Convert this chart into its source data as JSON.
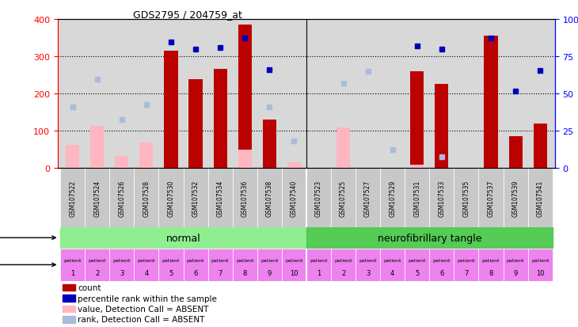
{
  "title": "GDS2795 / 204759_at",
  "samples": [
    "GSM107522",
    "GSM107524",
    "GSM107526",
    "GSM107528",
    "GSM107530",
    "GSM107532",
    "GSM107534",
    "GSM107536",
    "GSM107538",
    "GSM107540",
    "GSM107523",
    "GSM107525",
    "GSM107527",
    "GSM107529",
    "GSM107531",
    "GSM107533",
    "GSM107535",
    "GSM107537",
    "GSM107539",
    "GSM107541"
  ],
  "count_values": [
    null,
    null,
    null,
    null,
    315,
    238,
    265,
    385,
    130,
    null,
    null,
    null,
    null,
    null,
    260,
    225,
    null,
    355,
    85,
    120
  ],
  "rank_values": [
    null,
    null,
    null,
    null,
    338,
    320,
    323,
    348,
    263,
    null,
    null,
    null,
    null,
    null,
    328,
    318,
    null,
    348,
    207,
    262
  ],
  "absent_value_values": [
    62,
    112,
    32,
    68,
    null,
    null,
    null,
    50,
    null,
    15,
    null,
    108,
    null,
    null,
    10,
    null,
    null,
    null,
    null,
    null
  ],
  "absent_rank_values": [
    165,
    238,
    130,
    170,
    null,
    null,
    null,
    null,
    163,
    73,
    null,
    228,
    260,
    50,
    null,
    30,
    null,
    null,
    null,
    null
  ],
  "ylim_left": [
    0,
    400
  ],
  "ylim_right": [
    0,
    100
  ],
  "yticks_left": [
    0,
    100,
    200,
    300,
    400
  ],
  "yticks_right": [
    0,
    25,
    50,
    75,
    100
  ],
  "yticklabels_right": [
    "0",
    "25",
    "50",
    "75",
    "100%"
  ],
  "bar_width": 0.55,
  "count_color": "#BB0000",
  "rank_color": "#0000BB",
  "absent_value_color": "#FFB6C1",
  "absent_rank_color": "#AABBDD",
  "bg_color": "#D8D8D8",
  "normal_color": "#90EE90",
  "neuro_color": "#55CC55",
  "indiv_color": "#EE82EE"
}
